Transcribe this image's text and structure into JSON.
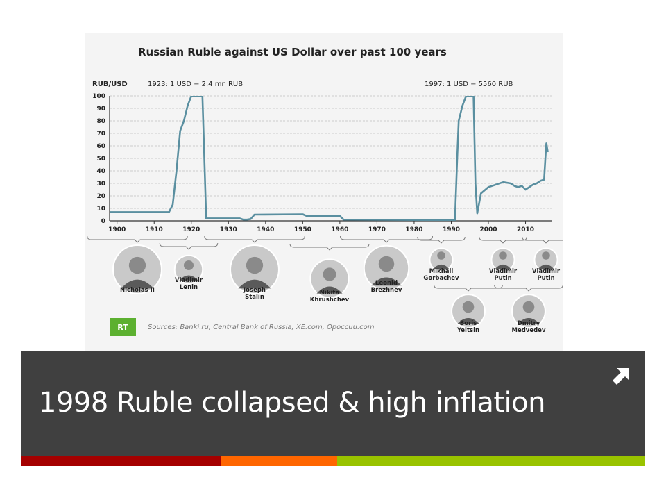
{
  "slide": {
    "title": "1998 Ruble collapsed & high inflation",
    "icon": "arrow-up-right-icon",
    "colors": {
      "band": "#404040",
      "accent": [
        "#a50000",
        "#ff6600",
        "#99c300"
      ]
    }
  },
  "chart_data": {
    "type": "line",
    "title": "Russian Ruble against US Dollar over past 100 years",
    "ylabel": "RUB/USD",
    "xlabel": "",
    "xlim": [
      1898,
      2017
    ],
    "ylim": [
      0,
      100
    ],
    "xticks": [
      "1900",
      "1910",
      "1920",
      "1930",
      "1940",
      "1950",
      "1960",
      "1970",
      "1980",
      "1990",
      "2000",
      "2010"
    ],
    "yticks": [
      "0",
      "10",
      "20",
      "30",
      "40",
      "50",
      "60",
      "70",
      "80",
      "90",
      "100"
    ],
    "grid": true,
    "line_color": "#5a8fa0",
    "series": [
      {
        "x": [
          1898,
          1914,
          1915,
          1916,
          1917,
          1917.5,
          1918,
          1919,
          1920,
          1921,
          1922,
          1923,
          1924,
          1933,
          1934,
          1935,
          1936,
          1937,
          1950,
          1951,
          1960,
          1961,
          1991,
          1991.6,
          1992,
          1993,
          1994,
          1995,
          1995.5,
          1996,
          1996.5,
          1997,
          1998,
          2000,
          2002,
          2004,
          2006,
          2007,
          2008,
          2009,
          2010,
          2012,
          2013,
          2014,
          2015,
          2015.3,
          2015.6,
          2016
        ],
        "y": [
          7,
          7,
          13,
          40,
          72,
          76,
          80,
          92,
          100,
          100,
          100,
          100,
          2,
          2,
          1,
          1,
          1.5,
          5,
          5.3,
          4,
          4,
          1,
          0.6,
          50,
          80,
          92,
          100,
          100,
          100,
          100,
          30,
          6,
          22,
          27,
          29,
          31,
          30,
          28,
          27,
          28,
          25,
          29,
          30,
          32,
          33,
          48,
          62,
          55
        ]
      }
    ],
    "annotations": [
      "1923: 1 USD = 2.4 mn RUB",
      "1997: 1 USD = 5560 RUB"
    ],
    "leaders": [
      {
        "name": [
          "Nicholas II"
        ],
        "from": 1898,
        "to": 1917
      },
      {
        "name": [
          "Vladimir",
          "Lenin"
        ],
        "from": 1918,
        "to": 1924
      },
      {
        "name": [
          "Joseph",
          "Stalin"
        ],
        "from": 1924,
        "to": 1953
      },
      {
        "name": [
          "Nikita",
          "Khrushchev"
        ],
        "from": 1953,
        "to": 1964
      },
      {
        "name": [
          "Leonid",
          "Brezhnev"
        ],
        "from": 1964,
        "to": 1982
      },
      {
        "name": [
          "Mikhail",
          "Gorbachev"
        ],
        "from": 1985,
        "to": 1991
      },
      {
        "name": [
          "Boris",
          "Yeltsin"
        ],
        "from": 1991,
        "to": 1999
      },
      {
        "name": [
          "Vladimir",
          "Putin"
        ],
        "from": 2000,
        "to": 2008
      },
      {
        "name": [
          "Dmitry",
          "Medvedev"
        ],
        "from": 2008,
        "to": 2012
      },
      {
        "name": [
          "Vladimir",
          "Putin"
        ],
        "from": 2012,
        "to": 2017
      }
    ],
    "logo": "RT",
    "source": "Sources: Banki.ru, Central Bank of Russia, XE.com, Opoccuu.com"
  }
}
